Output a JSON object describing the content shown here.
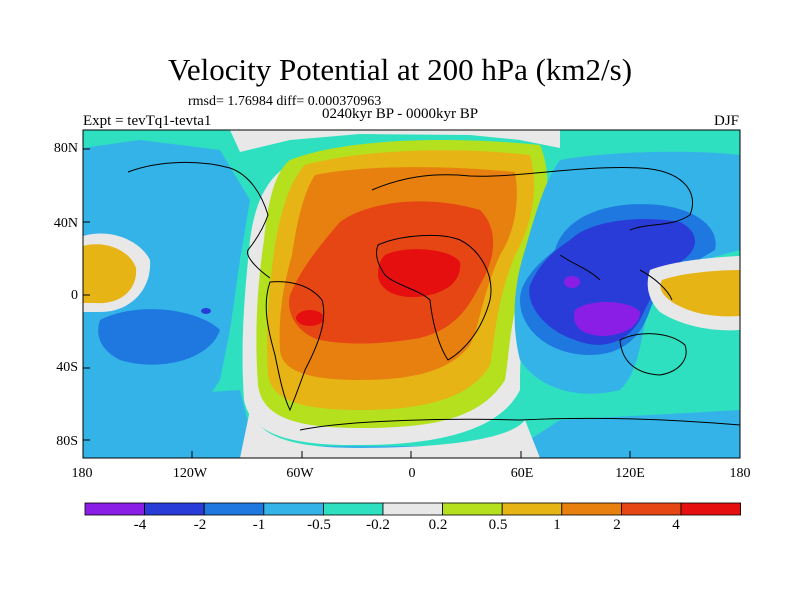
{
  "header": {
    "title": "Velocity Potential at 200 hPa (km2/s)",
    "stats": "rmsd= 1.76984 diff= 0.000370963",
    "period": "0240kyr BP - 0000kyr BP",
    "experiment": "Expt = tevTq1-tevta1",
    "season": "DJF"
  },
  "axes": {
    "lat_labels": [
      "80N",
      "40N",
      "0",
      "40S",
      "80S"
    ],
    "lon_labels": [
      "180",
      "120W",
      "60W",
      "0",
      "60E",
      "120E",
      "180"
    ]
  },
  "colorbar": {
    "labels": [
      "-4",
      "-2",
      "-1",
      "-0.5",
      "-0.2",
      "0.2",
      "0.5",
      "1",
      "2",
      "4"
    ],
    "colors": [
      "#8b1ee6",
      "#2a3cd8",
      "#1f78e0",
      "#34b3e8",
      "#2fe0c0",
      "#e8e8e8",
      "#b4e01e",
      "#e6b414",
      "#e8800f",
      "#e64614",
      "#e60f0f"
    ]
  },
  "map": {
    "projection": "cylindrical equidistant",
    "lon_range": [
      -180,
      180
    ],
    "lat_range": [
      -90,
      90
    ]
  }
}
